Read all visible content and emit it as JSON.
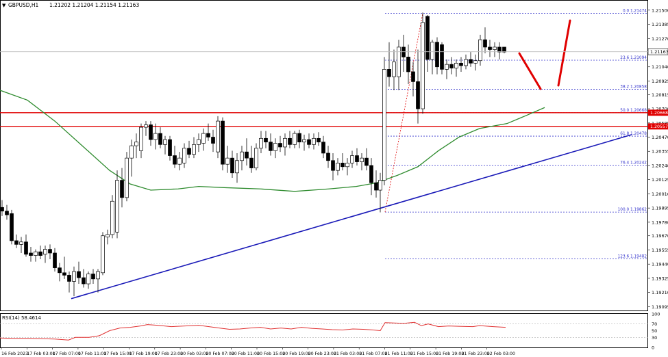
{
  "chart_data": {
    "type": "candlestick",
    "header": {
      "symbol": "GBPUSD,H1",
      "ohlc": "1.21202 1.21204 1.21154 1.21163"
    },
    "y_axis": {
      "range": [
        1.19075,
        1.2156
      ],
      "ticks": [
        "1.21500",
        "1.21385",
        "1.21270",
        "1.21155",
        "1.21040",
        "1.20925",
        "1.20815",
        "1.20700",
        "1.20585",
        "1.20470",
        "1.20355",
        "1.20240",
        "1.20125",
        "1.20010",
        "1.19895",
        "1.19780",
        "1.19670",
        "1.19555",
        "1.19440",
        "1.19325",
        "1.19210",
        "1.19095"
      ]
    },
    "x_axis": {
      "labels": [
        "16 Feb 2023",
        "17 Feb 03:00",
        "17 Feb 07:00",
        "17 Feb 11:00",
        "17 Feb 15:00",
        "17 Feb 19:00",
        "17 Feb 23:00",
        "20 Feb 03:00",
        "20 Feb 07:00",
        "20 Feb 11:00",
        "20 Feb 15:00",
        "20 Feb 19:00",
        "20 Feb 23:00",
        "21 Feb 03:00",
        "21 Feb 07:00",
        "21 Feb 11:00",
        "21 Feb 15:00",
        "21 Feb 19:00",
        "21 Feb 23:00",
        "22 Feb 03:00"
      ]
    },
    "price_label": "1.21163",
    "price_level": 1.21163,
    "resistance_lines": [
      {
        "value": 1.20668,
        "label": "1.20668",
        "color": "#e00000"
      },
      {
        "value": 1.20557,
        "label": "1.20557",
        "color": "#e00000"
      }
    ],
    "fibonacci": {
      "color": "#3333cc",
      "levels": [
        {
          "label": "0.0 1.21474",
          "value": 1.21474
        },
        {
          "label": "23.6 1.21094",
          "value": 1.21094
        },
        {
          "label": "38.2 1.20858",
          "value": 1.20858
        },
        {
          "label": "50.0 1.20668",
          "value": 1.20668
        },
        {
          "label": "61.8 1.20478",
          "value": 1.20478
        },
        {
          "label": "76.4 1.20242",
          "value": 1.20242
        },
        {
          "label": "100.0 1.19862",
          "value": 1.19862
        },
        {
          "label": "123.6 1.19482",
          "value": 1.19482
        }
      ]
    },
    "trendline": {
      "color": "#1a1ab8",
      "from": [
        0,
        1.1916
      ],
      "to": [
        1,
        1.2049
      ]
    },
    "moving_average": {
      "color": "#2e8b2e"
    },
    "rsi": {
      "label": "RSI(14) 58.4614",
      "range": [
        0,
        100
      ],
      "ticks": [
        "100",
        "70",
        "50",
        "30",
        "0"
      ]
    },
    "colors": {
      "bull": "#ffffff",
      "bear": "#000000",
      "wick": "#000000",
      "rsi_line": "#e03030",
      "arrows": "#e00000"
    }
  }
}
